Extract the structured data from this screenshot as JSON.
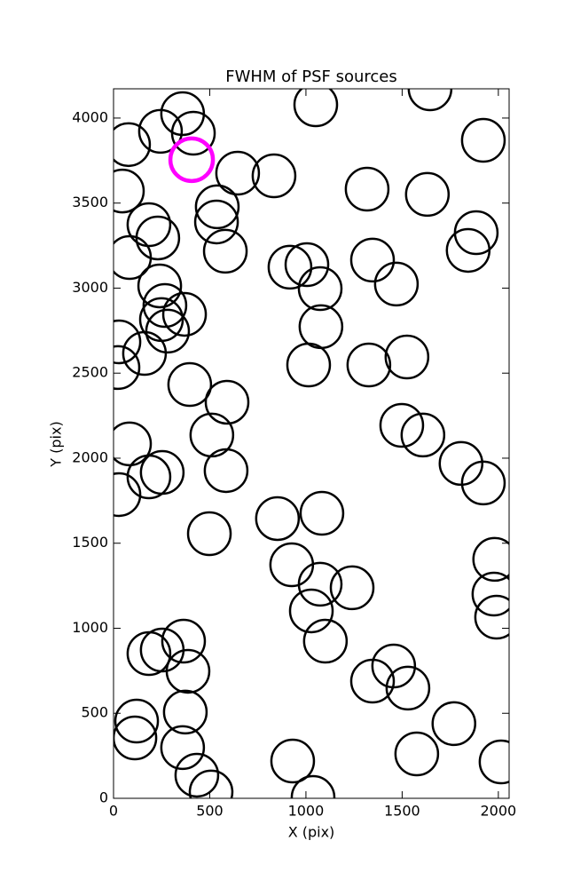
{
  "chart_data": {
    "type": "scatter",
    "title": "FWHM of PSF sources",
    "x_label": "X (pix)",
    "y_label": "Y (pix)",
    "xlim": [
      0,
      2056
    ],
    "ylim": [
      0,
      4172
    ],
    "xticks": [
      0,
      500,
      1000,
      1500,
      2000
    ],
    "yticks": [
      0,
      500,
      1000,
      1500,
      2000,
      2500,
      3000,
      3500,
      4000
    ],
    "grid": false,
    "series": [
      {
        "color": "#000000",
        "x": [
          359,
          244,
          415,
          78,
          46,
          645,
          834,
          1051,
          1645,
          1922,
          1318,
          1631,
          1885,
          1843,
          539,
          535,
          184,
          230,
          83,
          581,
          240,
          267,
          249,
          281,
          369,
          28,
          23,
          161,
          396,
          590,
          511,
          585,
          83,
          184,
          253,
          28,
          498,
          852,
          1083,
          926,
          1074,
          1028,
          1240,
          1101,
          917,
          1005,
          1074,
          1078,
          1014,
          1327,
          1470,
          1346,
          1525,
          1498,
          1608,
          1806,
          1922,
          1981,
          1977,
          1991,
          1346,
          1456,
          1530,
          1769,
          1576,
          364,
          184,
          253,
          387,
          373,
          120,
          111,
          359,
          433,
          507,
          931,
          1037,
          2014
        ],
        "y": [
          4026,
          3922,
          3911,
          3844,
          3571,
          3676,
          3660,
          4078,
          4172,
          3869,
          3582,
          3551,
          3326,
          3222,
          3478,
          3389,
          3373,
          3295,
          3180,
          3217,
          3013,
          2898,
          2815,
          2747,
          2846,
          2684,
          2533,
          2616,
          2433,
          2329,
          2136,
          1927,
          2084,
          1890,
          1916,
          1786,
          1556,
          1645,
          1676,
          1373,
          1259,
          1102,
          1238,
          924,
          3123,
          3138,
          2997,
          2773,
          2548,
          2548,
          3024,
          3165,
          2595,
          2193,
          2136,
          1969,
          1854,
          1405,
          1201,
          1065,
          689,
          778,
          648,
          439,
          261,
          924,
          851,
          872,
          747,
          507,
          454,
          355,
          298,
          136,
          37,
          219,
          5,
          214
        ]
      },
      {
        "color": "#ff00ff",
        "x": [
          406
        ],
        "y": [
          3755
        ]
      }
    ]
  }
}
